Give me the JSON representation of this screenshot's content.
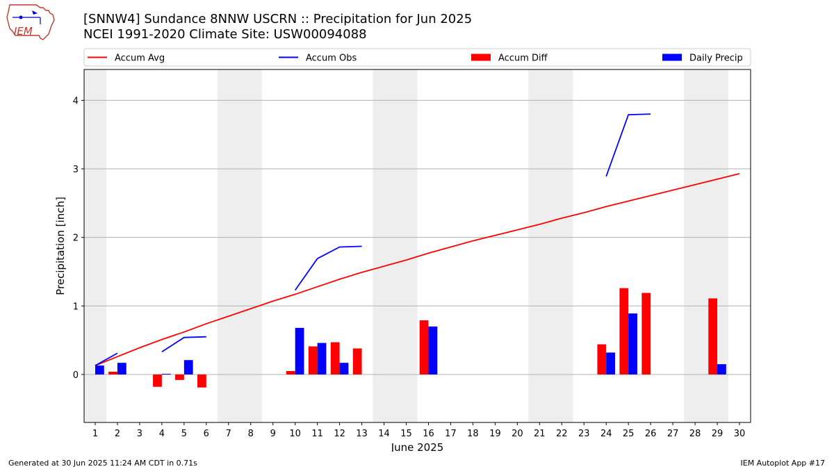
{
  "header": {
    "title_line1": "[SNNW4] Sundance 8NNW USCRN :: Precipitation for Jun 2025",
    "title_line2": "NCEI 1991-2020 Climate Site: USW00094088",
    "logo_text": "IEM"
  },
  "footer": {
    "left": "Generated at 30 Jun 2025 11:24 AM CDT in 0.71s",
    "right": "IEM Autoplot App #17"
  },
  "colors": {
    "avg": "#ff0000",
    "obs": "#0000ff",
    "diff": "#ff0000",
    "daily": "#0000ff",
    "weekend_shade": "#eeeeee",
    "grid": "#b0b0b0"
  },
  "chart_data": {
    "type": "bar",
    "xlabel": "June 2025",
    "ylabel": "Precipitation [inch]",
    "xlim": [
      0.5,
      30.5
    ],
    "ylim": [
      -0.7,
      4.45
    ],
    "yticks": [
      0,
      1,
      2,
      3,
      4
    ],
    "grid": "horizontal",
    "legend_position": "top",
    "days": [
      1,
      2,
      3,
      4,
      5,
      6,
      7,
      8,
      9,
      10,
      11,
      12,
      13,
      14,
      15,
      16,
      17,
      18,
      19,
      20,
      21,
      22,
      23,
      24,
      25,
      26,
      27,
      28,
      29,
      30
    ],
    "weekend_shading": [
      [
        0.5,
        1.5
      ],
      [
        6.5,
        8.5
      ],
      [
        13.5,
        15.5
      ],
      [
        20.5,
        22.5
      ],
      [
        27.5,
        29.5
      ]
    ],
    "legend": [
      "Accum Avg",
      "Accum Obs",
      "Accum Diff",
      "Daily Precip"
    ],
    "series": [
      {
        "name": "Accum Avg",
        "kind": "line",
        "x": [
          1,
          2,
          3,
          4,
          5,
          6,
          7,
          8,
          9,
          10,
          11,
          12,
          13,
          14,
          15,
          16,
          17,
          18,
          19,
          20,
          21,
          22,
          23,
          24,
          25,
          26,
          27,
          28,
          29,
          30
        ],
        "values": [
          0.13,
          0.26,
          0.39,
          0.51,
          0.62,
          0.74,
          0.85,
          0.96,
          1.07,
          1.17,
          1.28,
          1.39,
          1.49,
          1.58,
          1.67,
          1.77,
          1.86,
          1.95,
          2.03,
          2.11,
          2.19,
          2.28,
          2.36,
          2.45,
          2.53,
          2.61,
          2.69,
          2.77,
          2.85,
          2.93
        ]
      },
      {
        "name": "Accum Obs",
        "kind": "line",
        "segments": [
          {
            "x": [
              1,
              2
            ],
            "values": [
              0.13,
              0.31
            ]
          },
          {
            "x": [
              4,
              5,
              6
            ],
            "values": [
              0.33,
              0.54,
              0.55
            ]
          },
          {
            "x": [
              10,
              11,
              12,
              13
            ],
            "values": [
              1.23,
              1.69,
              1.86,
              1.87
            ]
          },
          {
            "x": [
              24,
              25,
              26
            ],
            "values": [
              2.89,
              3.79,
              3.8
            ]
          }
        ]
      },
      {
        "name": "Accum Diff",
        "kind": "bar",
        "x": [
          2,
          4,
          5,
          6,
          10,
          11,
          12,
          13,
          16,
          24,
          25,
          26,
          29
        ],
        "values": [
          0.04,
          -0.18,
          -0.08,
          -0.19,
          0.05,
          0.41,
          0.47,
          0.38,
          0.79,
          0.44,
          1.26,
          1.19,
          1.11
        ]
      },
      {
        "name": "Daily Precip",
        "kind": "bar",
        "x": [
          1,
          2,
          4,
          5,
          10,
          11,
          12,
          16,
          24,
          25,
          29
        ],
        "values": [
          0.13,
          0.17,
          0.01,
          0.21,
          0.68,
          0.46,
          0.17,
          0.7,
          0.32,
          0.89,
          0.15
        ]
      }
    ]
  }
}
